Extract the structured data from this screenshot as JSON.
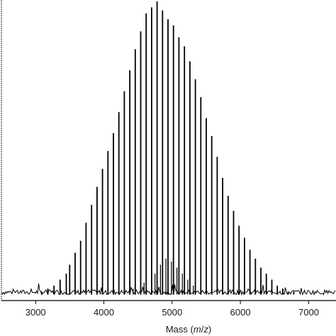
{
  "chart_data": {
    "type": "line",
    "title": "",
    "xlabel": "Mass (m/z)",
    "xlabel_parts": {
      "prefix": "Mass (",
      "var1": "m",
      "sep": "/",
      "var2": "z",
      "suffix": ")"
    },
    "ylabel": "",
    "xlim": [
      2500,
      7400
    ],
    "ylim": [
      0,
      100
    ],
    "xticks": [
      3000,
      4000,
      5000,
      6000,
      7000
    ],
    "grid": false,
    "legend": "none",
    "line_color": "#000000",
    "baseline_level": 2,
    "peaks": {
      "x": [
        3000,
        3090,
        3180,
        3270,
        3360,
        3450,
        3500,
        3580,
        3660,
        3740,
        3820,
        3900,
        3980,
        4060,
        4140,
        4220,
        4300,
        4380,
        4460,
        4540,
        4620,
        4700,
        4780,
        4860,
        4940,
        5020,
        5100,
        5180,
        5260,
        5340,
        5420,
        5500,
        5580,
        5660,
        5740,
        5820,
        5900,
        5980,
        6060,
        6140,
        6220,
        6300,
        6380,
        6460,
        6540,
        6620,
        6700,
        6780,
        6860,
        6940,
        7020
      ],
      "y": [
        2,
        3,
        4,
        5,
        7,
        9,
        12,
        16,
        20,
        26,
        32,
        38,
        44,
        50,
        56,
        63,
        70,
        77,
        84,
        90,
        96,
        98,
        100,
        97,
        94,
        92,
        88,
        85,
        80,
        74,
        68,
        61,
        55,
        48,
        41,
        35,
        30,
        25,
        21,
        17,
        14,
        11,
        9,
        7,
        5,
        4,
        3,
        3,
        2,
        2,
        2
      ]
    },
    "secondary_peaks": {
      "x": [
        4430,
        4590,
        4750,
        4830,
        4910,
        4990,
        5070,
        5150,
        5230,
        5310
      ],
      "y": [
        4,
        6,
        9,
        12,
        14,
        13,
        11,
        9,
        7,
        5
      ]
    }
  }
}
